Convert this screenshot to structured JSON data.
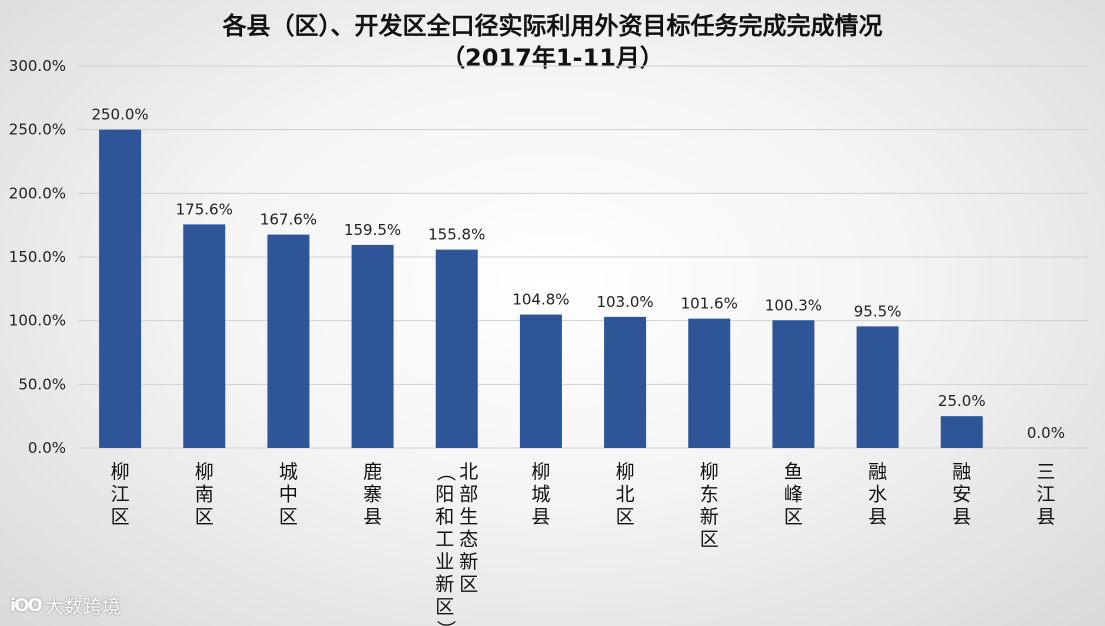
{
  "chart_data": {
    "type": "bar",
    "title": "各县（区）、开发区全口径实际利用外资目标任务完成完成情况",
    "subtitle": "（2017年1-11月）",
    "categories": [
      "柳江区",
      "柳南区",
      "城中区",
      "鹿寨县",
      "北部生态新区（阳和工业新区）",
      "柳城县",
      "柳北区",
      "柳东新区",
      "鱼峰区",
      "融水县",
      "融安县",
      "三江县"
    ],
    "values": [
      250.0,
      175.6,
      167.6,
      159.5,
      155.8,
      104.8,
      103.0,
      101.6,
      100.3,
      95.5,
      25.0,
      0.0
    ],
    "data_labels": [
      "250.0%",
      "175.6%",
      "167.6%",
      "159.5%",
      "155.8%",
      "104.8%",
      "103.0%",
      "101.6%",
      "100.3%",
      "95.5%",
      "25.0%",
      "0.0%"
    ],
    "yticks": [
      "0.0%",
      "50.0%",
      "100.0%",
      "150.0%",
      "200.0%",
      "250.0%",
      "300.0%"
    ],
    "ylim": [
      0,
      300
    ],
    "xlabel": "",
    "ylabel": "",
    "grid": true,
    "bar_color": "#2e5597"
  },
  "watermark": {
    "logo": "iOO",
    "text": "大数跨境"
  }
}
